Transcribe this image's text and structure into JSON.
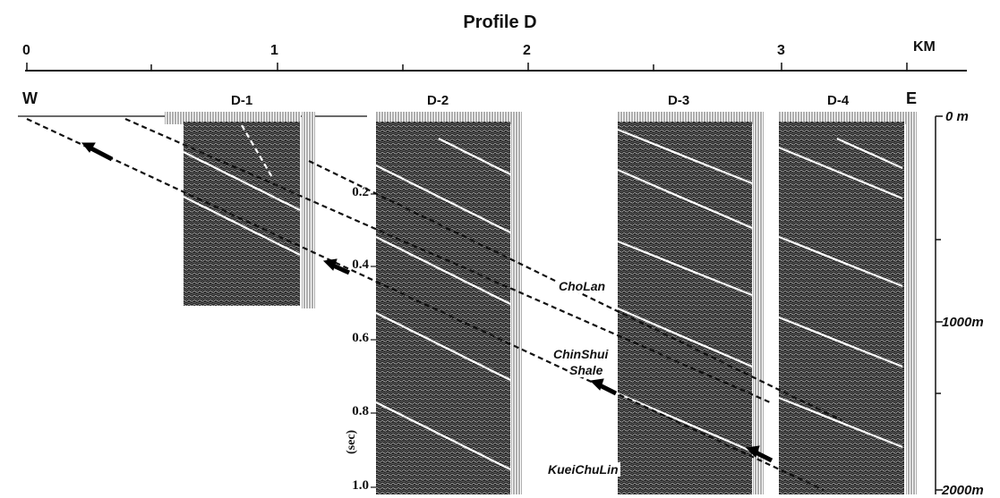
{
  "profile": {
    "title": "Profile D",
    "distance_scale": {
      "labels": [
        "0",
        "1",
        "2",
        "3"
      ],
      "unit": "KM"
    },
    "direction": {
      "west": "W",
      "east": "E"
    },
    "sections": [
      "D-1",
      "D-2",
      "D-3",
      "D-4"
    ],
    "time_axis": {
      "label": "(sec)",
      "ticks": [
        "0.2",
        "0.4",
        "0.6",
        "0.8",
        "1.0"
      ]
    },
    "depth_axis": [
      "0 m",
      "1000m",
      "2000m"
    ],
    "formations": {
      "cholan": "ChoLan",
      "chinshui": "ChinShui",
      "shale": "Shale",
      "kueichulin": "KueiChuLin"
    }
  }
}
